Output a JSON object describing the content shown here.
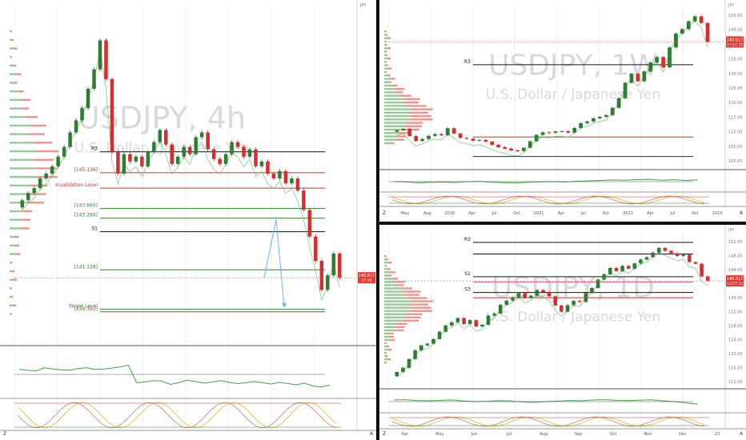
{
  "chart_data": [
    {
      "type": "candlestick",
      "symbol": "USDJPY",
      "timeframe": "4h",
      "watermark": "USDJPY, 4h",
      "subtitle": "U.S. Dollar / Japanese Yen",
      "levels": [
        {
          "label": "R3",
          "value": 146.0,
          "color": "#111111"
        },
        {
          "label": "[145.136]",
          "value": 145.136,
          "color": "#d32f2f"
        },
        {
          "label": "Invalidation Level",
          "value": 144.5,
          "color": "#d32f2f"
        },
        {
          "label": "[143.660]",
          "value": 143.66,
          "color": "#2e7d32"
        },
        {
          "label": "[143.260]",
          "value": 143.26,
          "color": "#2e7d32"
        },
        {
          "label": "S1",
          "value": 142.7,
          "color": "#111111"
        },
        {
          "label": "[141.128]",
          "value": 141.128,
          "color": "#2e7d32"
        },
        {
          "label": "[139.393]",
          "value": 139.393,
          "color": "#d32f2f"
        },
        {
          "label": "Target Level",
          "value": 139.5,
          "color": "#2e7d32"
        }
      ],
      "price_label": {
        "value": "140.817",
        "sub": "27:10",
        "color": "#e53935"
      },
      "ylim": [
        138.0,
        152.0
      ],
      "closes": [
        144.0,
        144.3,
        144.5,
        144.9,
        145.1,
        145.4,
        145.8,
        146.2,
        146.8,
        147.3,
        147.8,
        148.6,
        149.4,
        150.6,
        149.0,
        146.0,
        145.1,
        145.9,
        145.6,
        145.8,
        145.4,
        146.0,
        146.4,
        146.9,
        146.3,
        145.5,
        145.8,
        146.2,
        145.9,
        146.6,
        146.8,
        146.1,
        145.7,
        145.5,
        145.9,
        146.4,
        146.2,
        145.8,
        146.1,
        145.4,
        145.6,
        145.1,
        144.9,
        145.2,
        144.7,
        144.9,
        144.4,
        143.6,
        142.5,
        141.5,
        140.3,
        140.9,
        141.8,
        140.8
      ],
      "oscillator": [
        0.62,
        0.6,
        0.58,
        0.66,
        0.63,
        0.61,
        0.6,
        0.64,
        0.66,
        0.62,
        0.63,
        0.65,
        0.68,
        0.72,
        0.3,
        0.32,
        0.35,
        0.34,
        0.26,
        0.3,
        0.36,
        0.33,
        0.29,
        0.32,
        0.35,
        0.31,
        0.28,
        0.3,
        0.33,
        0.3,
        0.27,
        0.31,
        0.28,
        0.25,
        0.29,
        0.22,
        0.2,
        0.24
      ]
    },
    {
      "type": "candlestick",
      "symbol": "USDJPY",
      "timeframe": "1W",
      "watermark": "USDJPY, 1W",
      "subtitle": "U.S. Dollar / Japanese Yen",
      "levels": [
        {
          "label": "R3",
          "value": 133.0,
          "color": "#111111"
        },
        {
          "label": "",
          "value": 108.2,
          "color": "#d32f2f"
        },
        {
          "label": "",
          "value": 101.5,
          "color": "#1a237e"
        }
      ],
      "price_label": {
        "value": "140.817",
        "sub": "12:57:33",
        "color": "#e53935"
      },
      "x_ticks": [
        "May",
        "Aug",
        "2020",
        "Apr",
        "Jul",
        "Oct",
        "2021",
        "Apr",
        "Jul",
        "Oct",
        "2022",
        "Apr",
        "Jul",
        "Oct",
        "2023"
      ],
      "y_ticks": [
        150.0,
        145.0,
        140.0,
        135.0,
        130.0,
        125.0,
        120.0,
        115.0,
        110.0,
        105.0,
        100.0
      ],
      "ylim": [
        97.0,
        153.0
      ],
      "closes": [
        110.5,
        111.0,
        108.5,
        106.8,
        107.5,
        108.6,
        109.2,
        108.8,
        111.2,
        109.4,
        107.9,
        107.6,
        106.9,
        107.2,
        106.6,
        105.5,
        104.7,
        104.2,
        103.6,
        103.4,
        104.5,
        106.7,
        108.9,
        109.8,
        109.6,
        110.1,
        110.2,
        109.7,
        111.3,
        112.9,
        113.5,
        114.6,
        115.1,
        115.7,
        118.2,
        121.5,
        126.8,
        129.9,
        127.3,
        130.7,
        133.8,
        135.6,
        132.1,
        138.9,
        143.7,
        145.2,
        147.9,
        149.6,
        147.3,
        140.8
      ],
      "oscillator": [
        0.5,
        0.48,
        0.42,
        0.45,
        0.47,
        0.44,
        0.49,
        0.52,
        0.46,
        0.43,
        0.41,
        0.45,
        0.48,
        0.5,
        0.47,
        0.52,
        0.55,
        0.58,
        0.62,
        0.6,
        0.64,
        0.66,
        0.6,
        0.63,
        0.58,
        0.62
      ]
    },
    {
      "type": "candlestick",
      "symbol": "USDJPY",
      "timeframe": "1D",
      "watermark": "USDJPY, 1D",
      "subtitle": "U.S. Dollar / Japanese Yen",
      "levels": [
        {
          "label": "R3",
          "value": 151.8,
          "color": "#111111"
        },
        {
          "label": "",
          "value": 148.5,
          "color": "#111111"
        },
        {
          "label": "S1",
          "value": 142.0,
          "color": "#111111"
        },
        {
          "label": "",
          "value": 140.5,
          "color": "#f06292"
        },
        {
          "label": "S3",
          "value": 137.5,
          "color": "#111111"
        },
        {
          "label": "",
          "value": 136.0,
          "color": "#d32f2f"
        }
      ],
      "price_label": {
        "value": "140.817",
        "sub": "12:57:33",
        "color": "#e53935"
      },
      "x_ticks": [
        "Apr",
        "May",
        "Jun",
        "Jul",
        "Aug",
        "Sep",
        "Oct",
        "Nov",
        "Dec",
        "23"
      ],
      "y_ticks": [
        152.0,
        148.0,
        144.0,
        140.0,
        136.0,
        132.0,
        128.0,
        124.0,
        120.0,
        116.0,
        112.0
      ],
      "ylim": [
        110.0,
        155.0
      ],
      "closes": [
        114.8,
        116.0,
        118.5,
        121.0,
        122.4,
        122.9,
        124.2,
        126.3,
        128.1,
        129.0,
        130.2,
        128.5,
        129.6,
        127.8,
        128.3,
        130.9,
        131.5,
        134.0,
        135.2,
        136.1,
        137.3,
        135.9,
        136.6,
        138.2,
        137.6,
        136.4,
        133.8,
        132.0,
        133.9,
        135.1,
        134.8,
        137.4,
        138.8,
        141.2,
        142.7,
        144.5,
        143.6,
        145.1,
        144.3,
        145.8,
        146.9,
        147.6,
        148.9,
        150.2,
        149.4,
        148.7,
        147.9,
        148.3,
        146.2,
        145.7,
        142.1,
        140.8
      ],
      "oscillator": [
        0.6,
        0.62,
        0.57,
        0.55,
        0.58,
        0.6,
        0.54,
        0.5,
        0.52,
        0.56,
        0.54,
        0.48,
        0.45,
        0.5,
        0.53,
        0.57,
        0.55,
        0.6,
        0.62,
        0.58,
        0.56,
        0.59,
        0.61,
        0.55,
        0.5,
        0.42,
        0.34
      ]
    }
  ]
}
